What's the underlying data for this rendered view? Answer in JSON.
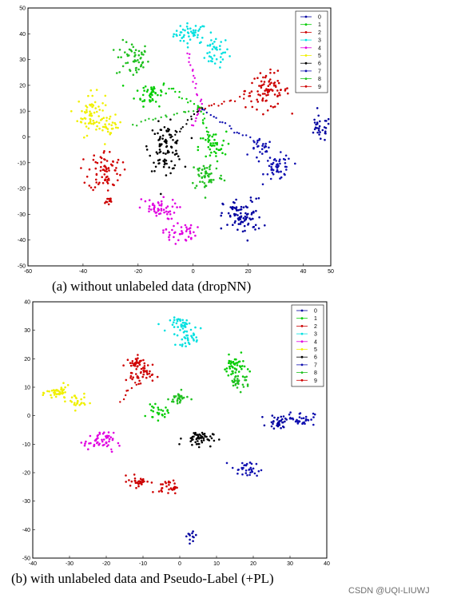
{
  "captions": {
    "a": "(a) without unlabeled data (dropNN)",
    "b": "(b) with unlabeled data and Pseudo-Label (+PL)"
  },
  "watermark": "CSDN @UQI-LIUWJ",
  "class_colors": {
    "0": "#0000a0",
    "1": "#00cc00",
    "2": "#cc0000",
    "3": "#00e0e0",
    "4": "#e000e0",
    "5": "#f0f000",
    "6": "#000000",
    "7": "#1010b0",
    "8": "#20c020",
    "9": "#d00000"
  },
  "chart_data": [
    {
      "type": "scatter",
      "title": "",
      "xlabel": "",
      "ylabel": "",
      "xlim": [
        -60,
        50
      ],
      "ylim": [
        -50,
        50
      ],
      "xticks": [
        -60,
        -40,
        -20,
        0,
        20,
        40,
        50
      ],
      "yticks": [
        -50,
        -40,
        -30,
        -20,
        -10,
        0,
        10,
        20,
        30,
        40,
        50
      ],
      "legend": {
        "position": "top-right",
        "labels": [
          "0",
          "1",
          "2",
          "3",
          "4",
          "5",
          "6",
          "7",
          "8",
          "9"
        ]
      },
      "clusters": [
        {
          "cls": "3",
          "cx": -1,
          "cy": 40,
          "sx": 3,
          "sy": 2,
          "n": 45
        },
        {
          "cls": "3",
          "cx": 8,
          "cy": 33,
          "sx": 2.5,
          "sy": 3,
          "n": 40
        },
        {
          "cls": "8",
          "cx": -22,
          "cy": 30,
          "sx": 3,
          "sy": 3.5,
          "n": 55
        },
        {
          "cls": "1",
          "cx": -15,
          "cy": 17,
          "sx": 3,
          "sy": 2.5,
          "n": 45
        },
        {
          "cls": "5",
          "cx": -37,
          "cy": 9,
          "sx": 2.5,
          "sy": 4,
          "n": 70
        },
        {
          "cls": "5",
          "cx": -30,
          "cy": 4,
          "sx": 2,
          "sy": 2,
          "n": 25
        },
        {
          "cls": "2",
          "cx": 27,
          "cy": 18,
          "sx": 4,
          "sy": 3.5,
          "n": 85
        },
        {
          "cls": "0",
          "cx": 46,
          "cy": 3,
          "sx": 2,
          "sy": 2.5,
          "n": 30
        },
        {
          "cls": "7",
          "cx": 25,
          "cy": -5,
          "sx": 2,
          "sy": 2,
          "n": 25
        },
        {
          "cls": "7",
          "cx": 31,
          "cy": -12,
          "sx": 2.5,
          "sy": 2.5,
          "n": 50
        },
        {
          "cls": "6",
          "cx": -10,
          "cy": -4,
          "sx": 3,
          "sy": 4.5,
          "n": 95
        },
        {
          "cls": "1",
          "cx": 7,
          "cy": -4,
          "sx": 2.5,
          "sy": 3,
          "n": 40
        },
        {
          "cls": "8",
          "cx": 5,
          "cy": -15,
          "sx": 3,
          "sy": 3,
          "n": 55
        },
        {
          "cls": "9",
          "cx": -32,
          "cy": -13,
          "sx": 3,
          "sy": 4,
          "n": 75
        },
        {
          "cls": "2",
          "cx": -31,
          "cy": -25,
          "sx": 1,
          "sy": 1,
          "n": 10
        },
        {
          "cls": "4",
          "cx": -13,
          "cy": -28,
          "sx": 3.5,
          "sy": 2,
          "n": 50
        },
        {
          "cls": "4",
          "cx": -5,
          "cy": -37,
          "sx": 3,
          "sy": 2,
          "n": 40
        },
        {
          "cls": "0",
          "cx": 18,
          "cy": -31,
          "sx": 3.5,
          "sy": 3.5,
          "n": 90
        }
      ],
      "strands": [
        {
          "cls": "4",
          "from": [
            3,
            11
          ],
          "to": [
            -2,
            33
          ],
          "n": 18
        },
        {
          "cls": "1",
          "from": [
            3,
            11
          ],
          "to": [
            -10,
            20
          ],
          "n": 15
        },
        {
          "cls": "2",
          "from": [
            3,
            11
          ],
          "to": [
            20,
            16
          ],
          "n": 15
        },
        {
          "cls": "8",
          "from": [
            3,
            11
          ],
          "to": [
            -22,
            5
          ],
          "n": 18
        },
        {
          "cls": "7",
          "from": [
            3,
            11
          ],
          "to": [
            24,
            -3
          ],
          "n": 20
        },
        {
          "cls": "6",
          "from": [
            3,
            11
          ],
          "to": [
            -8,
            0
          ],
          "n": 14
        },
        {
          "cls": "1",
          "from": [
            3,
            11
          ],
          "to": [
            6,
            -3
          ],
          "n": 14
        },
        {
          "cls": "4",
          "from": [
            3,
            11
          ],
          "to": [
            0,
            4
          ],
          "n": 8
        }
      ]
    },
    {
      "type": "scatter",
      "title": "",
      "xlabel": "",
      "ylabel": "",
      "xlim": [
        -40,
        40
      ],
      "ylim": [
        -50,
        40
      ],
      "xticks": [
        -40,
        -30,
        -20,
        -10,
        0,
        10,
        20,
        30,
        40
      ],
      "yticks": [
        -50,
        -40,
        -30,
        -20,
        -10,
        0,
        10,
        20,
        30,
        40
      ],
      "legend": {
        "position": "top-right",
        "labels": [
          "0",
          "1",
          "2",
          "3",
          "4",
          "5",
          "6",
          "7",
          "8",
          "9"
        ]
      },
      "clusters": [
        {
          "cls": "3",
          "cx": 1,
          "cy": 32,
          "sx": 1.8,
          "sy": 1.2,
          "n": 40
        },
        {
          "cls": "3",
          "cx": 2,
          "cy": 27,
          "sx": 1.5,
          "sy": 1.2,
          "n": 30
        },
        {
          "cls": "9",
          "cx": -11,
          "cy": 18,
          "sx": 1.8,
          "sy": 1.4,
          "n": 40
        },
        {
          "cls": "2",
          "cx": -11,
          "cy": 14,
          "sx": 1.8,
          "sy": 1.2,
          "n": 30
        },
        {
          "cls": "1",
          "cx": 15,
          "cy": 17,
          "sx": 1.5,
          "sy": 2,
          "n": 45
        },
        {
          "cls": "8",
          "cx": 16,
          "cy": 12,
          "sx": 1.5,
          "sy": 1.5,
          "n": 30
        },
        {
          "cls": "5",
          "cx": -33,
          "cy": 8,
          "sx": 1.6,
          "sy": 1.2,
          "n": 45
        },
        {
          "cls": "5",
          "cx": -28,
          "cy": 5,
          "sx": 1.2,
          "sy": 1.5,
          "n": 25
        },
        {
          "cls": "8",
          "cx": 0,
          "cy": 6,
          "sx": 1.4,
          "sy": 1.2,
          "n": 30
        },
        {
          "cls": "1",
          "cx": -6,
          "cy": 1,
          "sx": 1.4,
          "sy": 1.2,
          "n": 25
        },
        {
          "cls": "0",
          "cx": 27,
          "cy": -2,
          "sx": 1.5,
          "sy": 1.2,
          "n": 35
        },
        {
          "cls": "7",
          "cx": 33,
          "cy": -1,
          "sx": 1.8,
          "sy": 1.2,
          "n": 35
        },
        {
          "cls": "6",
          "cx": 5,
          "cy": -8,
          "sx": 2,
          "sy": 1.3,
          "n": 55
        },
        {
          "cls": "4",
          "cx": -22,
          "cy": -9,
          "sx": 2,
          "sy": 1.5,
          "n": 50
        },
        {
          "cls": "7",
          "cx": 18,
          "cy": -19,
          "sx": 2,
          "sy": 1.5,
          "n": 35
        },
        {
          "cls": "2",
          "cx": -11,
          "cy": -23,
          "sx": 1.5,
          "sy": 1.1,
          "n": 30
        },
        {
          "cls": "9",
          "cx": -3,
          "cy": -25,
          "sx": 1.3,
          "sy": 1.2,
          "n": 30
        },
        {
          "cls": "0",
          "cx": 3,
          "cy": -42,
          "sx": 0.8,
          "sy": 1.2,
          "n": 12
        }
      ],
      "strands": [
        {
          "cls": "2",
          "from": [
            -12,
            12
          ],
          "to": [
            -16,
            5
          ],
          "n": 8
        },
        {
          "cls": "4",
          "from": [
            -20,
            -11
          ],
          "to": [
            -18,
            -13
          ],
          "n": 4
        }
      ]
    }
  ]
}
